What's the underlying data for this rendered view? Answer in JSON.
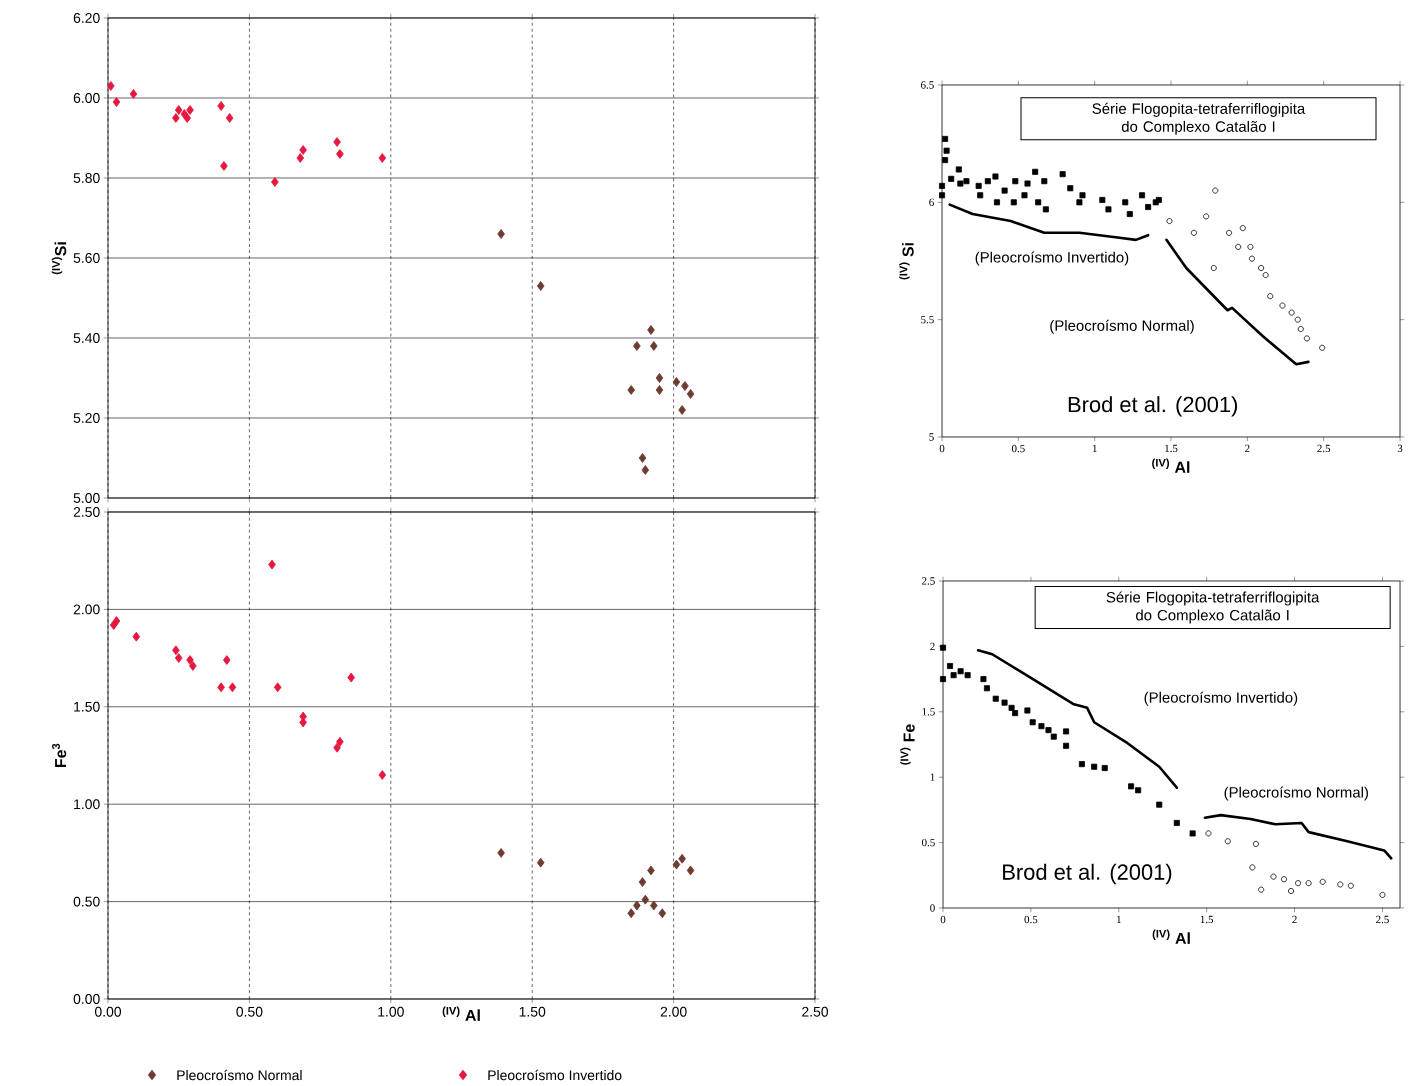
{
  "chart_data": [
    {
      "type": "scatter",
      "ylabel": "$^{(IV)}$Si",
      "xlim": [
        0,
        2.5
      ],
      "ylim": [
        5,
        6.2
      ],
      "xticks": [
        {
          "value": 0,
          "label": null
        },
        {
          "value": 0.5,
          "label": null
        },
        {
          "value": 1,
          "label": null
        },
        {
          "value": 1.5,
          "label": null
        },
        {
          "value": 2,
          "label": null
        },
        {
          "value": 2.5,
          "label": null
        }
      ],
      "yticks": [
        {
          "value": 5,
          "label": "5.00"
        },
        {
          "value": 5.2,
          "label": "5.20"
        },
        {
          "value": 5.4,
          "label": "5.40"
        },
        {
          "value": 5.6,
          "label": "5.60"
        },
        {
          "value": 5.8,
          "label": "5.80"
        },
        {
          "value": 6,
          "label": "6.00"
        },
        {
          "value": 6.2,
          "label": "6.20"
        }
      ],
      "tick_labels": "y",
      "grid": true,
      "marker": "diamond",
      "series": [
        {
          "color": "#6e3b30",
          "x": [
            1.39,
            1.53,
            1.92,
            1.87,
            1.93,
            1.85,
            1.95,
            1.95,
            2.01,
            2.04,
            2.06,
            2.03,
            1.89,
            1.9
          ],
          "values": [
            5.66,
            5.53,
            5.42,
            5.38,
            5.38,
            5.27,
            5.3,
            5.27,
            5.29,
            5.28,
            5.26,
            5.22,
            5.1,
            5.07
          ]
        },
        {
          "color": "#e8173f",
          "x": [
            0.01,
            0.03,
            0.09,
            0.24,
            0.25,
            0.28,
            0.29,
            0.27,
            0.4,
            0.43,
            0.41,
            0.59,
            0.69,
            0.68,
            0.81,
            0.82,
            0.97
          ],
          "values": [
            6.03,
            5.99,
            6.01,
            5.95,
            5.97,
            5.95,
            5.97,
            5.96,
            5.98,
            5.95,
            5.83,
            5.79,
            5.87,
            5.85,
            5.89,
            5.86,
            5.85
          ]
        }
      ]
    },
    {
      "type": "scatter",
      "title": "Série Flogopita-tetraferriflogipita do Complexo Catalão I",
      "xlabel": "$^{(IV)}$ Al",
      "ylabel": "$^{(IV)}$ Si",
      "xlim": [
        0,
        3
      ],
      "ylim": [
        5,
        6.5
      ],
      "xticks": [
        0,
        0.5,
        1,
        1.5,
        2,
        2.5,
        3
      ],
      "yticks": [
        5,
        5.5,
        6,
        6.5
      ],
      "annotations": [
        "(Pleocroísmo Invertido)",
        "(Pleocroísmo Normal)",
        "Brod et al. (2001)"
      ],
      "series": [
        {
          "color": "#000000",
          "marker": "square",
          "x": [
            0.02,
            0.03,
            0.02,
            0,
            0,
            0.06,
            0.11,
            0.12,
            0.16,
            0.24,
            0.25,
            0.3,
            0.35,
            0.36,
            0.41,
            0.48,
            0.47,
            0.54,
            0.56,
            0.61,
            0.63,
            0.68,
            0.67,
            0.79,
            0.84,
            0.9,
            0.92,
            1.05,
            1.09,
            1.2,
            1.23,
            1.31,
            1.35,
            1.4,
            1.42
          ],
          "values": [
            6.27,
            6.22,
            6.18,
            6.07,
            6.03,
            6.1,
            6.14,
            6.08,
            6.09,
            6.07,
            6.03,
            6.09,
            6.11,
            6.0,
            6.05,
            6.09,
            6.0,
            6.03,
            6.08,
            6.13,
            6.0,
            5.97,
            6.09,
            6.12,
            6.06,
            6.0,
            6.03,
            6.01,
            5.97,
            6.0,
            5.95,
            6.03,
            5.98,
            6.0,
            6.01
          ]
        },
        {
          "color": "#000000",
          "marker": "circle",
          "x": [
            1.49,
            1.65,
            1.79,
            1.73,
            1.78,
            1.88,
            1.97,
            1.94,
            2.02,
            2.03,
            2.09,
            2.12,
            2.15,
            2.23,
            2.29,
            2.33,
            2.35,
            2.39,
            2.49
          ],
          "values": [
            5.92,
            5.87,
            6.05,
            5.94,
            5.72,
            5.87,
            5.89,
            5.81,
            5.81,
            5.76,
            5.72,
            5.69,
            5.6,
            5.56,
            5.53,
            5.5,
            5.46,
            5.42,
            5.38
          ]
        },
        {
          "type": "line",
          "color": "#000000",
          "x": [
            0.05,
            0.2,
            0.45,
            0.67,
            0.9,
            1.15,
            1.27,
            1.35
          ],
          "values": [
            5.99,
            5.95,
            5.92,
            5.87,
            5.87,
            5.85,
            5.84,
            5.86
          ]
        },
        {
          "type": "line",
          "color": "#000000",
          "x": [
            1.47,
            1.6,
            1.75,
            1.87,
            1.9,
            2.1,
            2.32,
            2.4
          ],
          "values": [
            5.84,
            5.72,
            5.62,
            5.54,
            5.55,
            5.43,
            5.31,
            5.32
          ]
        }
      ]
    },
    {
      "type": "scatter",
      "xlabel": "$^{(IV)}$ Al",
      "ylabel": "Fe$^{3}$",
      "xlim": [
        0,
        2.5
      ],
      "ylim": [
        0,
        2.5
      ],
      "xticks": [
        {
          "value": 0,
          "label": "0.00"
        },
        {
          "value": 0.5,
          "label": "0.50"
        },
        {
          "value": 1,
          "label": "1.00"
        },
        {
          "value": 1.5,
          "label": "1.50"
        },
        {
          "value": 2,
          "label": "2.00"
        },
        {
          "value": 2.5,
          "label": "2.50"
        }
      ],
      "yticks": [
        {
          "value": 0,
          "label": "0.00"
        },
        {
          "value": 0.5,
          "label": "0.50"
        },
        {
          "value": 1,
          "label": "1.00"
        },
        {
          "value": 1.5,
          "label": "1.50"
        },
        {
          "value": 2,
          "label": "2.00"
        },
        {
          "value": 2.5,
          "label": "2.50"
        }
      ],
      "grid": true,
      "marker": "diamond",
      "legend": "bottom",
      "series": [
        {
          "name": "Pleocroísmo Normal",
          "color": "#6e3b30",
          "x": [
            1.39,
            1.53,
            1.89,
            1.92,
            1.85,
            1.87,
            1.9,
            1.93,
            1.96,
            2.03,
            2.01,
            2.06
          ],
          "values": [
            0.75,
            0.7,
            0.6,
            0.66,
            0.44,
            0.48,
            0.51,
            0.48,
            0.44,
            0.72,
            0.69,
            0.66
          ]
        },
        {
          "name": "Pleocroísmo Invertido",
          "color": "#e8173f",
          "x": [
            0.03,
            0.02,
            0.1,
            0.24,
            0.25,
            0.29,
            0.3,
            0.42,
            0.4,
            0.44,
            0.58,
            0.6,
            0.86,
            0.69,
            0.69,
            0.81,
            0.82,
            0.97
          ],
          "values": [
            1.94,
            1.92,
            1.86,
            1.79,
            1.75,
            1.74,
            1.71,
            1.74,
            1.6,
            1.6,
            2.23,
            1.6,
            1.65,
            1.45,
            1.42,
            1.29,
            1.32,
            1.15
          ]
        }
      ]
    },
    {
      "type": "scatter",
      "title": "Série Flogopita-tetraferriflogipita do Complexo Catalão I",
      "xlabel": "$^{(IV)}$ Al",
      "ylabel": "$^{(IV)}$ Fe",
      "xlim": [
        0,
        2.6
      ],
      "ylim": [
        0,
        2.5
      ],
      "xticks": [
        0,
        0.5,
        1,
        1.5,
        2,
        2.5
      ],
      "yticks": [
        0,
        0.5,
        1,
        1.5,
        2,
        2.5
      ],
      "annotations": [
        "(Pleocroísmo Invertido)",
        "(Pleocroísmo Normal)",
        "Brod et al. (2001)"
      ],
      "series": [
        {
          "color": "#000000",
          "marker": "square",
          "x": [
            0,
            0,
            0.04,
            0.06,
            0.1,
            0.14,
            0.23,
            0.25,
            0.3,
            0.35,
            0.39,
            0.41,
            0.48,
            0.51,
            0.56,
            0.6,
            0.63,
            0.7,
            0.7,
            0.79,
            0.86,
            0.92,
            1.07,
            1.11,
            1.23,
            1.33,
            1.42
          ],
          "values": [
            1.99,
            1.75,
            1.85,
            1.78,
            1.81,
            1.78,
            1.75,
            1.68,
            1.6,
            1.57,
            1.53,
            1.49,
            1.51,
            1.42,
            1.39,
            1.36,
            1.31,
            1.35,
            1.24,
            1.1,
            1.08,
            1.07,
            0.93,
            0.9,
            0.79,
            0.65,
            0.57
          ]
        },
        {
          "color": "#000000",
          "marker": "circle",
          "x": [
            1.51,
            1.62,
            1.78,
            1.76,
            1.81,
            1.88,
            1.94,
            1.98,
            2.02,
            2.08,
            2.16,
            2.26,
            2.32,
            2.5
          ],
          "values": [
            0.57,
            0.51,
            0.49,
            0.31,
            0.14,
            0.24,
            0.22,
            0.13,
            0.19,
            0.19,
            0.2,
            0.18,
            0.17,
            0.1
          ]
        },
        {
          "type": "line",
          "color": "#000000",
          "x": [
            0.2,
            0.28,
            0.5,
            0.74,
            0.82,
            0.86,
            1.05,
            1.23,
            1.33
          ],
          "values": [
            1.97,
            1.94,
            1.76,
            1.56,
            1.53,
            1.42,
            1.26,
            1.08,
            0.92
          ]
        },
        {
          "type": "line",
          "color": "#000000",
          "x": [
            1.49,
            1.58,
            1.75,
            1.89,
            2.04,
            2.08,
            2.3,
            2.51,
            2.55
          ],
          "values": [
            0.69,
            0.71,
            0.68,
            0.64,
            0.65,
            0.58,
            0.51,
            0.44,
            0.38
          ]
        }
      ]
    }
  ]
}
